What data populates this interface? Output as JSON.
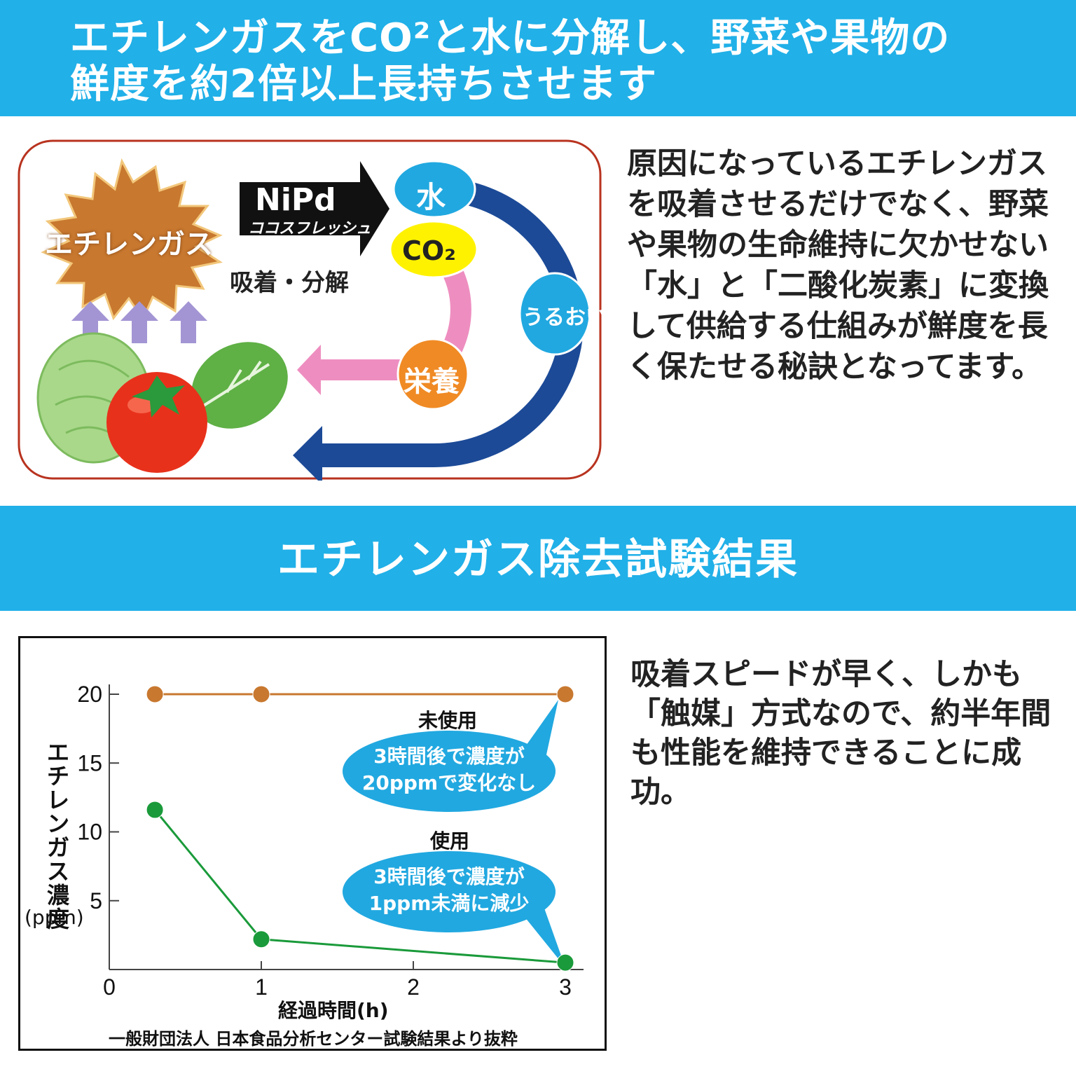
{
  "banner_top": {
    "line1": "エチレンガスをCO²と水に分解し、野菜や果物の",
    "line2": "鮮度を約2倍以上長持ちさせます"
  },
  "diagram": {
    "gas_label": "エチレンガス",
    "product_name": "NiPd",
    "product_sub": "ココスフレッシュ",
    "action_label": "吸着・分解",
    "water_label": "水",
    "co2_label": "CO₂",
    "moisture_label": "うるおい",
    "nutrition_label": "栄養",
    "colors": {
      "gas": "#c8782f",
      "water_arrow": "#1c4a97",
      "co2_arrow": "#ee8ec0",
      "bubble": "#21a8e0",
      "co2_bubble": "#fff200",
      "nutrition_bubble": "#f08a24",
      "frame": "#b8331f"
    }
  },
  "desc_top": "原因になっているエチレンガスを吸着させるだけでなく、野菜や果物の生命維持に欠かせない「水」と「二酸化炭素」に変換して供給する仕組みが鮮度を長く保たせる秘訣となってます。",
  "banner_mid": {
    "title": "エチレンガス除去試験結果"
  },
  "desc_bottom": "吸着スピードが早く、しかも「触媒」方式なので、約半年間も性能を維持できることに成功。",
  "chart_data": {
    "type": "line",
    "ylabel": "エチレンガス濃度",
    "yunit": "(ppm)",
    "xlabel": "経過時間(h)",
    "xticks": [
      "0",
      "1",
      "2",
      "3"
    ],
    "yticks": [
      "5",
      "10",
      "15",
      "20"
    ],
    "xlim": [
      0,
      3
    ],
    "ylim": [
      0,
      20
    ],
    "series": [
      {
        "name": "未使用",
        "color": "#c8782f",
        "x": [
          0.3,
          1,
          3
        ],
        "y": [
          20,
          20,
          20
        ]
      },
      {
        "name": "使用",
        "color": "#1a9a3a",
        "x": [
          0.3,
          1,
          3
        ],
        "y": [
          11.6,
          2.2,
          0.5
        ]
      }
    ],
    "annotations": {
      "unused_bubble": [
        "3時間後で濃度が",
        "20ppmで変化なし"
      ],
      "used_bubble": [
        "3時間後で濃度が",
        "1ppm未満に減少"
      ]
    },
    "bubble_color": "#21a8e0",
    "source": "一般財団法人 日本食品分析センター試験結果より抜粋"
  }
}
